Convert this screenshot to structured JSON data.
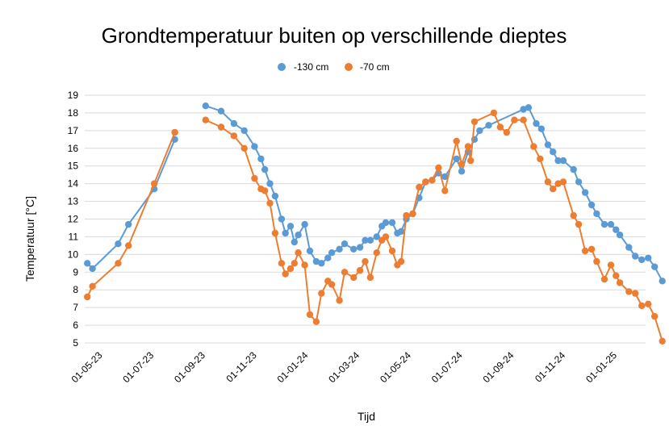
{
  "chart_data": {
    "type": "line",
    "title": "Grondtemperatuur buiten op verschillende dieptes",
    "xlabel": "Tijd",
    "ylabel": "Temperatuur [°C]",
    "ylim": [
      5,
      19
    ],
    "yticks": [
      5,
      6,
      7,
      8,
      9,
      10,
      11,
      12,
      13,
      14,
      15,
      16,
      17,
      18,
      19
    ],
    "grid": "horizontal",
    "legend_position": "top-center",
    "x_axis": {
      "unit": "months since 01-03-23",
      "range": [
        1.3,
        23.1
      ],
      "tick_labels": [
        "01-05-23",
        "01-07-23",
        "01-09-23",
        "01-11-23",
        "01-01-24",
        "01-03-24",
        "01-05-24",
        "01-07-24",
        "01-09-24",
        "01-11-24",
        "01-01-25"
      ],
      "tick_positions": [
        2,
        4,
        6,
        8,
        10,
        12,
        14,
        16,
        18,
        20,
        22
      ]
    },
    "series": [
      {
        "name": "-130 cm",
        "color": "#5b9bd5",
        "segments": [
          [
            [
              1.4,
              9.5
            ],
            [
              1.6,
              9.2
            ],
            [
              2.6,
              10.6
            ],
            [
              3.0,
              11.7
            ],
            [
              4.0,
              13.7
            ],
            [
              4.8,
              16.5
            ]
          ],
          [
            [
              6.0,
              18.4
            ],
            [
              6.6,
              18.1
            ],
            [
              7.1,
              17.4
            ],
            [
              7.5,
              17.0
            ],
            [
              7.9,
              16.1
            ],
            [
              8.15,
              15.4
            ],
            [
              8.3,
              14.8
            ],
            [
              8.5,
              14.0
            ],
            [
              8.7,
              13.3
            ],
            [
              8.95,
              12.0
            ],
            [
              9.1,
              11.2
            ],
            [
              9.3,
              11.6
            ],
            [
              9.45,
              10.7
            ],
            [
              9.6,
              11.1
            ],
            [
              9.85,
              11.7
            ],
            [
              10.05,
              10.2
            ],
            [
              10.3,
              9.6
            ],
            [
              10.5,
              9.5
            ],
            [
              10.75,
              9.8
            ],
            [
              10.9,
              10.1
            ],
            [
              11.2,
              10.3
            ],
            [
              11.4,
              10.6
            ],
            [
              11.75,
              10.3
            ],
            [
              12.0,
              10.4
            ],
            [
              12.2,
              10.8
            ],
            [
              12.4,
              10.8
            ],
            [
              12.65,
              11.0
            ],
            [
              12.85,
              11.6
            ],
            [
              13.0,
              11.8
            ],
            [
              13.25,
              11.8
            ],
            [
              13.45,
              11.2
            ],
            [
              13.6,
              11.3
            ],
            [
              13.8,
              12.0
            ],
            [
              14.05,
              12.3
            ],
            [
              14.3,
              13.2
            ],
            [
              14.55,
              14.1
            ],
            [
              14.8,
              14.2
            ],
            [
              15.05,
              14.6
            ],
            [
              15.3,
              14.4
            ],
            [
              15.75,
              15.4
            ],
            [
              15.95,
              14.7
            ],
            [
              16.2,
              15.8
            ],
            [
              16.45,
              16.5
            ],
            [
              16.65,
              17.0
            ],
            [
              17.0,
              17.3
            ],
            [
              18.35,
              18.2
            ],
            [
              18.55,
              18.3
            ],
            [
              18.85,
              17.4
            ],
            [
              19.05,
              17.1
            ],
            [
              19.3,
              16.2
            ],
            [
              19.5,
              15.8
            ],
            [
              19.7,
              15.3
            ],
            [
              19.9,
              15.3
            ],
            [
              20.3,
              14.8
            ],
            [
              20.5,
              14.1
            ],
            [
              20.75,
              13.5
            ],
            [
              21.0,
              12.8
            ],
            [
              21.2,
              12.3
            ],
            [
              21.5,
              11.7
            ],
            [
              21.75,
              11.7
            ],
            [
              21.95,
              11.4
            ],
            [
              22.1,
              11.1
            ],
            [
              22.45,
              10.4
            ],
            [
              22.7,
              9.9
            ],
            [
              22.95,
              9.7
            ],
            [
              23.2,
              9.8
            ],
            [
              23.45,
              9.3
            ],
            [
              23.75,
              8.5
            ]
          ]
        ]
      },
      {
        "name": "-70 cm",
        "color": "#ed7d31",
        "segments": [
          [
            [
              1.4,
              7.6
            ],
            [
              1.6,
              8.2
            ],
            [
              2.6,
              9.5
            ],
            [
              3.0,
              10.5
            ],
            [
              4.0,
              14.0
            ],
            [
              4.8,
              16.9
            ]
          ],
          [
            [
              6.0,
              17.6
            ],
            [
              6.6,
              17.2
            ],
            [
              7.1,
              16.7
            ],
            [
              7.5,
              16.0
            ],
            [
              7.9,
              14.3
            ],
            [
              8.15,
              13.7
            ],
            [
              8.3,
              13.6
            ],
            [
              8.5,
              12.9
            ],
            [
              8.7,
              11.2
            ],
            [
              8.95,
              9.5
            ],
            [
              9.1,
              8.9
            ],
            [
              9.3,
              9.2
            ],
            [
              9.45,
              9.5
            ],
            [
              9.6,
              10.1
            ],
            [
              9.85,
              9.4
            ],
            [
              10.05,
              6.6
            ],
            [
              10.3,
              6.2
            ],
            [
              10.5,
              7.8
            ],
            [
              10.75,
              8.5
            ],
            [
              10.9,
              8.3
            ],
            [
              11.2,
              7.4
            ],
            [
              11.4,
              9.0
            ],
            [
              11.75,
              8.7
            ],
            [
              12.0,
              9.1
            ],
            [
              12.2,
              9.6
            ],
            [
              12.4,
              8.7
            ],
            [
              12.65,
              10.1
            ],
            [
              12.85,
              10.8
            ],
            [
              13.0,
              11.0
            ],
            [
              13.25,
              10.2
            ],
            [
              13.45,
              9.4
            ],
            [
              13.6,
              9.6
            ],
            [
              13.8,
              12.2
            ],
            [
              14.05,
              12.3
            ],
            [
              14.3,
              13.8
            ],
            [
              14.55,
              14.1
            ],
            [
              14.8,
              14.2
            ],
            [
              15.05,
              14.9
            ],
            [
              15.3,
              13.6
            ],
            [
              15.75,
              16.4
            ],
            [
              15.95,
              15.1
            ],
            [
              16.2,
              16.1
            ],
            [
              16.3,
              15.3
            ],
            [
              16.45,
              17.5
            ],
            [
              17.2,
              18.0
            ],
            [
              17.45,
              17.2
            ],
            [
              17.7,
              16.9
            ],
            [
              18.0,
              17.6
            ],
            [
              18.35,
              17.6
            ],
            [
              18.75,
              16.1
            ],
            [
              19.0,
              15.4
            ],
            [
              19.3,
              14.1
            ],
            [
              19.5,
              13.7
            ],
            [
              19.7,
              14.0
            ],
            [
              19.9,
              14.1
            ],
            [
              20.3,
              12.2
            ],
            [
              20.5,
              11.7
            ],
            [
              20.75,
              10.2
            ],
            [
              21.0,
              10.3
            ],
            [
              21.2,
              9.6
            ],
            [
              21.5,
              8.6
            ],
            [
              21.75,
              9.4
            ],
            [
              21.95,
              8.8
            ],
            [
              22.1,
              8.4
            ],
            [
              22.45,
              7.9
            ],
            [
              22.7,
              7.8
            ],
            [
              22.95,
              7.1
            ],
            [
              23.2,
              7.2
            ],
            [
              23.45,
              6.5
            ],
            [
              23.75,
              5.1
            ]
          ]
        ]
      }
    ]
  }
}
